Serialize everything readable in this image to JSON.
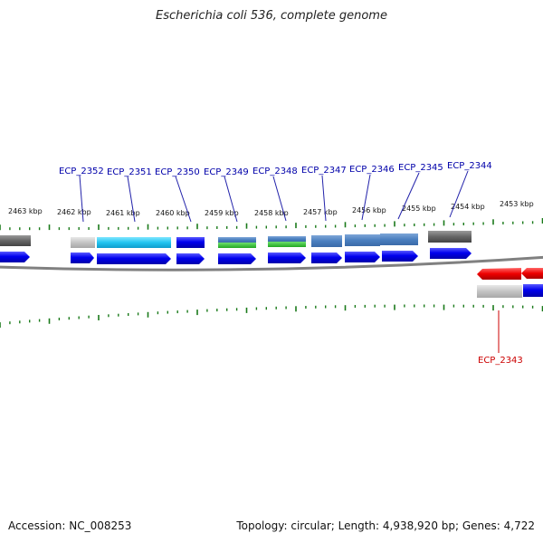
{
  "title": "Escherichia coli 536, complete genome",
  "accession": "Accession: NC_008253",
  "topology": "Topology: circular; Length: 4,938,920 bp; Genes: 4,722",
  "colors": {
    "label_forward": "#0000aa",
    "label_reverse": "#cc0000",
    "tick": "#1a7a1a",
    "backbone": "#888888",
    "gene_blue": "#0000ee",
    "gene_red": "#ee0000"
  },
  "kbp_labels": [
    {
      "text": "2463 kbp",
      "kbp": 2463
    },
    {
      "text": "2462 kbp",
      "kbp": 2462
    },
    {
      "text": "2461 kbp",
      "kbp": 2461
    },
    {
      "text": "2460 kbp",
      "kbp": 2460
    },
    {
      "text": "2459 kbp",
      "kbp": 2459
    },
    {
      "text": "2458 kbp",
      "kbp": 2458
    },
    {
      "text": "2457 kbp",
      "kbp": 2457
    },
    {
      "text": "2456 kbp",
      "kbp": 2456
    },
    {
      "text": "2455 kbp",
      "kbp": 2455
    },
    {
      "text": "2454 kbp",
      "kbp": 2454
    },
    {
      "text": "2453 kbp",
      "kbp": 2453
    }
  ],
  "gene_labels": [
    {
      "text": "ECP_2352",
      "strand": "forward"
    },
    {
      "text": "ECP_2351",
      "strand": "forward"
    },
    {
      "text": "ECP_2350",
      "strand": "forward"
    },
    {
      "text": "ECP_2349",
      "strand": "forward"
    },
    {
      "text": "ECP_2348",
      "strand": "forward"
    },
    {
      "text": "ECP_2347",
      "strand": "forward"
    },
    {
      "text": "ECP_2346",
      "strand": "forward"
    },
    {
      "text": "ECP_2345",
      "strand": "forward"
    },
    {
      "text": "ECP_2344",
      "strand": "forward"
    },
    {
      "text": "ECP_2343",
      "strand": "reverse"
    }
  ]
}
